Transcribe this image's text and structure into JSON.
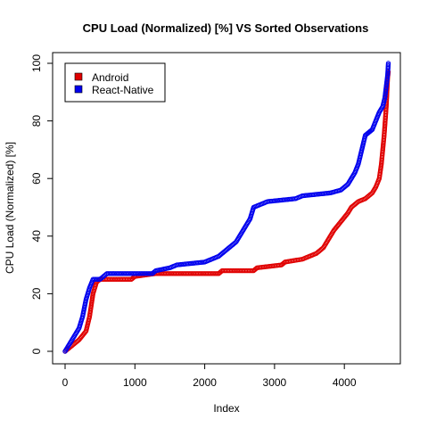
{
  "chart_data": {
    "type": "scatter",
    "title": "CPU Load (Normalized) [%]  VS  Sorted Observations",
    "xlabel": "Index",
    "ylabel": "CPU Load (Normalized) [%]",
    "xlim": [
      0,
      4700
    ],
    "ylim": [
      0,
      100
    ],
    "xticks": [
      "0",
      "1000",
      "2000",
      "3000",
      "4000"
    ],
    "yticks": [
      "0",
      "20",
      "40",
      "60",
      "80",
      "100"
    ],
    "legend_position": "top-left",
    "series": [
      {
        "name": "Android",
        "color": "#e00000",
        "points": [
          [
            0,
            0
          ],
          [
            100,
            2
          ],
          [
            200,
            4
          ],
          [
            300,
            7
          ],
          [
            350,
            12
          ],
          [
            400,
            20
          ],
          [
            450,
            24
          ],
          [
            500,
            25
          ],
          [
            950,
            25
          ],
          [
            1000,
            26
          ],
          [
            1300,
            27
          ],
          [
            2200,
            27
          ],
          [
            2250,
            28
          ],
          [
            2700,
            28
          ],
          [
            2750,
            29
          ],
          [
            3100,
            30
          ],
          [
            3150,
            31
          ],
          [
            3400,
            32
          ],
          [
            3600,
            34
          ],
          [
            3700,
            36
          ],
          [
            3800,
            40
          ],
          [
            3850,
            42
          ],
          [
            3950,
            45
          ],
          [
            4050,
            48
          ],
          [
            4100,
            50
          ],
          [
            4200,
            52
          ],
          [
            4300,
            53
          ],
          [
            4400,
            55
          ],
          [
            4450,
            57
          ],
          [
            4500,
            60
          ],
          [
            4530,
            65
          ],
          [
            4550,
            70
          ],
          [
            4570,
            75
          ],
          [
            4585,
            80
          ],
          [
            4600,
            85
          ],
          [
            4610,
            90
          ],
          [
            4620,
            95
          ],
          [
            4630,
            97
          ]
        ]
      },
      {
        "name": "React-Native",
        "color": "#0000ee",
        "points": [
          [
            0,
            0
          ],
          [
            100,
            4
          ],
          [
            200,
            8
          ],
          [
            250,
            12
          ],
          [
            300,
            18
          ],
          [
            350,
            22
          ],
          [
            400,
            25
          ],
          [
            500,
            25
          ],
          [
            600,
            27
          ],
          [
            1250,
            27
          ],
          [
            1300,
            28
          ],
          [
            1500,
            29
          ],
          [
            1600,
            30
          ],
          [
            2000,
            31
          ],
          [
            2100,
            32
          ],
          [
            2200,
            33
          ],
          [
            2350,
            36
          ],
          [
            2450,
            38
          ],
          [
            2550,
            42
          ],
          [
            2650,
            46
          ],
          [
            2700,
            50
          ],
          [
            2800,
            51
          ],
          [
            2900,
            52
          ],
          [
            3300,
            53
          ],
          [
            3400,
            54
          ],
          [
            3800,
            55
          ],
          [
            3950,
            56
          ],
          [
            4050,
            58
          ],
          [
            4150,
            62
          ],
          [
            4200,
            65
          ],
          [
            4250,
            70
          ],
          [
            4300,
            75
          ],
          [
            4350,
            76
          ],
          [
            4400,
            77
          ],
          [
            4450,
            80
          ],
          [
            4500,
            83
          ],
          [
            4550,
            85
          ],
          [
            4580,
            88
          ],
          [
            4600,
            92
          ],
          [
            4620,
            96
          ],
          [
            4630,
            100
          ]
        ]
      }
    ]
  }
}
